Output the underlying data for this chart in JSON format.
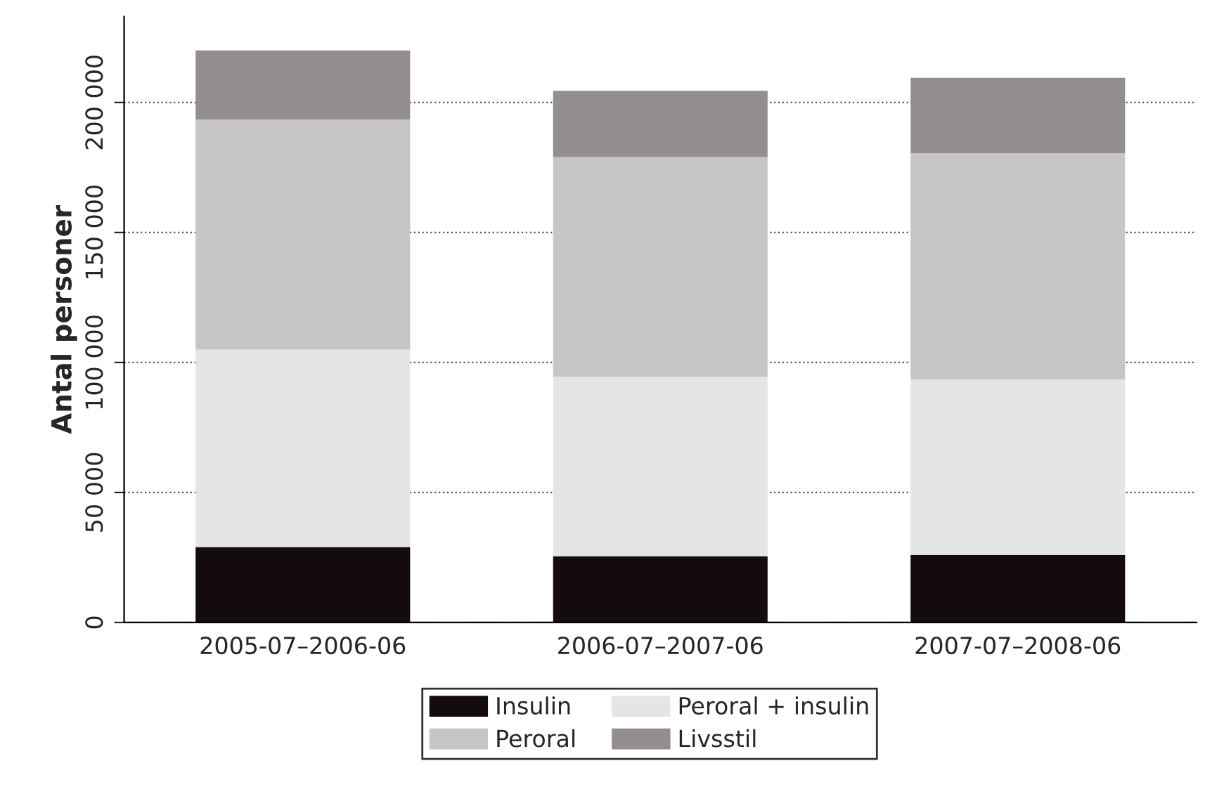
{
  "chart_data": {
    "type": "bar",
    "stacked": true,
    "ylabel": "Antal personer",
    "categories": [
      "2005-07–2006-06",
      "2006-07–2007-06",
      "2007-07–2008-06"
    ],
    "series": [
      {
        "name": "Insulin",
        "color": "#140c0c",
        "values": [
          29000,
          25500,
          26000
        ]
      },
      {
        "name": "Peroral + insulin",
        "color": "#e5e5e5",
        "values": [
          76000,
          69000,
          67500
        ]
      },
      {
        "name": "Peroral",
        "color": "#c6c6c6",
        "values": [
          88500,
          84500,
          87000
        ]
      },
      {
        "name": "Livsstil",
        "color": "#948e8e",
        "values": [
          26500,
          25500,
          29000
        ]
      }
    ],
    "ylim": [
      0,
      233000
    ],
    "yticks": [
      0,
      {
        "value": 50000,
        "label": "50 000"
      },
      {
        "value": 100000,
        "label": "100 000"
      },
      {
        "value": 150000,
        "label": "150 000"
      },
      {
        "value": 200000,
        "label": "200 000"
      }
    ],
    "grid": "y",
    "legend": "bottom"
  }
}
